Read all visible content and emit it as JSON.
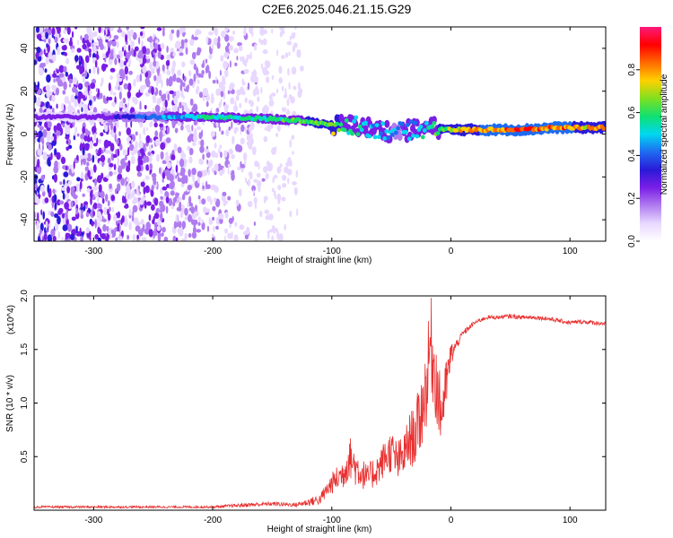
{
  "page": {
    "title": "C2E6.2025.046.21.15.G29"
  },
  "colorbar": {
    "label": "Normalized spectral amplitude",
    "ticks": [
      "0.0",
      "0.2",
      "0.4",
      "0.6",
      "0.8"
    ],
    "tick_values": [
      0,
      0.2,
      0.4,
      0.6,
      0.8
    ],
    "range": [
      0,
      1
    ],
    "colors": [
      "#ffffff",
      "#e8d8ff",
      "#b07cf0",
      "#7a1ee6",
      "#2a1ad8",
      "#1e6bf0",
      "#00d8f0",
      "#10e070",
      "#80e020",
      "#ffd000",
      "#ff6a00",
      "#ff0000",
      "#ff1a7a"
    ]
  },
  "chart_data": [
    {
      "type": "heatmap",
      "title": "C2E6.2025.046.21.15.G29",
      "xlabel": "Height of straight line (km)",
      "ylabel": "Frequency (Hz)",
      "xlim": [
        -350,
        130
      ],
      "ylim": [
        -50,
        50
      ],
      "xticks": [
        -300,
        -200,
        -100,
        0,
        100
      ],
      "xtick_labels": [
        "-300",
        "-200",
        "-100",
        "0",
        "100"
      ],
      "yticks": [
        -40,
        -20,
        0,
        20,
        40
      ],
      "ytick_labels": [
        "-40",
        "-20",
        "0",
        "20",
        "40"
      ],
      "colorbar_label": "Normalized spectral amplitude",
      "ridge": {
        "x": [
          -350,
          -300,
          -230,
          -200,
          -150,
          -120,
          -100,
          -80,
          -60,
          -45,
          -30,
          -15,
          0,
          30,
          60,
          90,
          130
        ],
        "frequency": [
          8,
          8,
          8,
          8,
          7,
          6,
          4,
          4,
          2,
          1,
          2,
          3,
          2,
          2,
          2,
          3,
          3
        ],
        "amplitude": [
          0.25,
          0.25,
          0.5,
          0.55,
          0.6,
          0.65,
          0.7,
          0.55,
          0.5,
          0.45,
          0.5,
          0.6,
          0.75,
          0.85,
          0.9,
          0.85,
          0.8
        ]
      }
    },
    {
      "type": "line",
      "xlabel": "Height of straight line (km)",
      "ylabel": "SNR (10 * v/v)",
      "scale_label": "(x10^4)",
      "color": "#e83030",
      "xlim": [
        -350,
        130
      ],
      "ylim": [
        0,
        2.0
      ],
      "xticks": [
        -300,
        -200,
        -100,
        0,
        100
      ],
      "xtick_labels": [
        "-300",
        "-200",
        "-100",
        "0",
        "100"
      ],
      "yticks": [
        0.5,
        1.0,
        1.5,
        2.0
      ],
      "ytick_labels": [
        "0.5",
        "1.0",
        "1.5",
        "2.0"
      ],
      "series": [
        {
          "x": [
            -350,
            -300,
            -250,
            -200,
            -170,
            -150,
            -130,
            -110,
            -100,
            -95,
            -90,
            -85,
            -80,
            -75,
            -70,
            -65,
            -60,
            -55,
            -50,
            -45,
            -40,
            -35,
            -30,
            -25,
            -20,
            -17,
            -15,
            -12,
            -10,
            -8,
            -5,
            -2,
            0,
            5,
            10,
            20,
            30,
            40,
            50,
            60,
            70,
            80,
            90,
            100,
            110,
            120,
            130
          ],
          "y": [
            0.03,
            0.03,
            0.03,
            0.03,
            0.05,
            0.06,
            0.05,
            0.1,
            0.25,
            0.3,
            0.35,
            0.5,
            0.4,
            0.35,
            0.3,
            0.35,
            0.4,
            0.5,
            0.55,
            0.45,
            0.5,
            0.65,
            0.7,
            0.9,
            1.2,
            1.6,
            1.4,
            1.2,
            1.0,
            0.9,
            1.1,
            1.3,
            1.45,
            1.55,
            1.65,
            1.75,
            1.8,
            1.8,
            1.81,
            1.8,
            1.8,
            1.79,
            1.77,
            1.75,
            1.76,
            1.75,
            1.74
          ],
          "spread": [
            0.01,
            0.01,
            0.01,
            0.01,
            0.02,
            0.02,
            0.02,
            0.05,
            0.1,
            0.12,
            0.15,
            0.2,
            0.18,
            0.15,
            0.12,
            0.15,
            0.15,
            0.18,
            0.2,
            0.2,
            0.2,
            0.25,
            0.3,
            0.35,
            0.4,
            0.45,
            0.45,
            0.4,
            0.35,
            0.3,
            0.25,
            0.2,
            0.12,
            0.05,
            0.03,
            0.02,
            0.02,
            0.02,
            0.02,
            0.02,
            0.02,
            0.02,
            0.02,
            0.02,
            0.02,
            0.02,
            0.02
          ]
        }
      ]
    }
  ]
}
